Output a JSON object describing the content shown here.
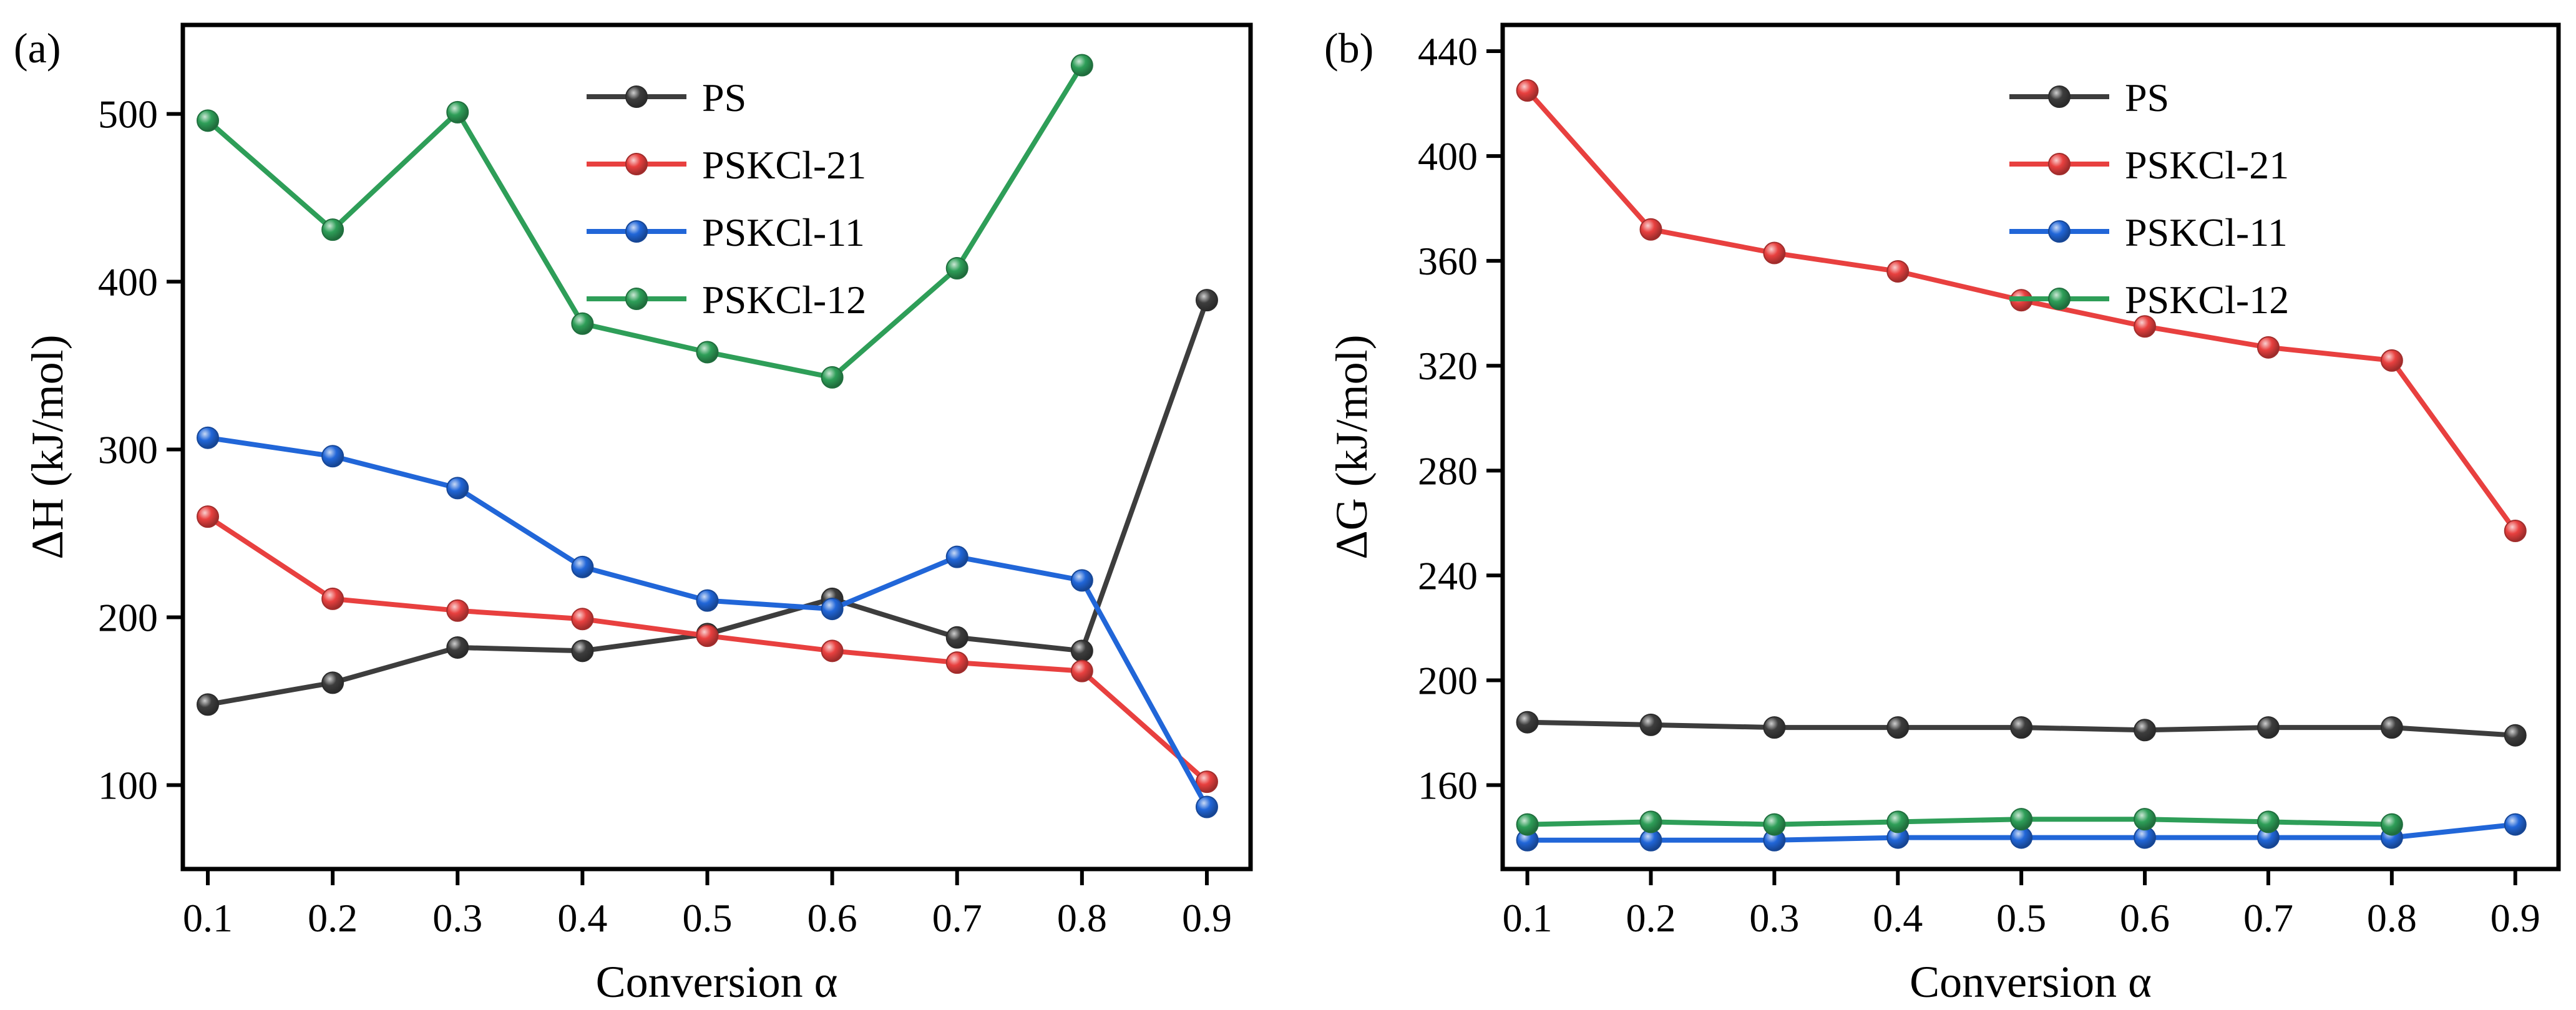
{
  "chart_data": [
    {
      "panel_label": "(a)",
      "type": "line",
      "xlabel": "Conversion α",
      "ylabel": "ΔH (kJ/mol)",
      "x": [
        0.1,
        0.2,
        0.3,
        0.4,
        0.5,
        0.6,
        0.7,
        0.8,
        0.9
      ],
      "xlim": [
        0.08,
        0.935
      ],
      "ylim": [
        50,
        553
      ],
      "xticks": [
        "0.1",
        "0.2",
        "0.3",
        "0.4",
        "0.5",
        "0.6",
        "0.7",
        "0.8",
        "0.9"
      ],
      "yticks": [
        "100",
        "200",
        "300",
        "400",
        "500"
      ],
      "legend_position": "top-center",
      "series": [
        {
          "name": "PS",
          "color": "#3d3d3d",
          "values": [
            148,
            161,
            182,
            180,
            190,
            211,
            188,
            180,
            389
          ]
        },
        {
          "name": "PSKCl-21",
          "color": "#e8403f",
          "values": [
            260,
            211,
            204,
            199,
            189,
            180,
            173,
            168,
            102
          ]
        },
        {
          "name": "PSKCl-11",
          "color": "#2166d8",
          "values": [
            307,
            296,
            277,
            230,
            210,
            205,
            236,
            222,
            87
          ]
        },
        {
          "name": "PSKCl-12",
          "color": "#2e9e58",
          "values": [
            496,
            431,
            501,
            375,
            358,
            343,
            408,
            529,
            null
          ]
        }
      ]
    },
    {
      "panel_label": "(b)",
      "type": "line",
      "xlabel": "Conversion α",
      "ylabel": "ΔG (kJ/mol)",
      "x": [
        0.1,
        0.2,
        0.3,
        0.4,
        0.5,
        0.6,
        0.7,
        0.8,
        0.9
      ],
      "xlim": [
        0.08,
        0.935
      ],
      "ylim": [
        128,
        450
      ],
      "xticks": [
        "0.1",
        "0.2",
        "0.3",
        "0.4",
        "0.5",
        "0.6",
        "0.7",
        "0.8",
        "0.9"
      ],
      "yticks": [
        "160",
        "200",
        "240",
        "280",
        "320",
        "360",
        "400",
        "440"
      ],
      "legend_position": "top-center",
      "series": [
        {
          "name": "PS",
          "color": "#3d3d3d",
          "values": [
            184,
            183,
            182,
            182,
            182,
            181,
            182,
            182,
            179
          ]
        },
        {
          "name": "PSKCl-21",
          "color": "#e8403f",
          "values": [
            425,
            372,
            363,
            356,
            345,
            335,
            327,
            322,
            257
          ]
        },
        {
          "name": "PSKCl-11",
          "color": "#2166d8",
          "values": [
            139,
            139,
            139,
            140,
            140,
            140,
            140,
            140,
            145
          ]
        },
        {
          "name": "PSKCl-12",
          "color": "#2e9e58",
          "values": [
            145,
            146,
            145,
            146,
            147,
            147,
            146,
            145,
            null
          ]
        }
      ]
    }
  ]
}
